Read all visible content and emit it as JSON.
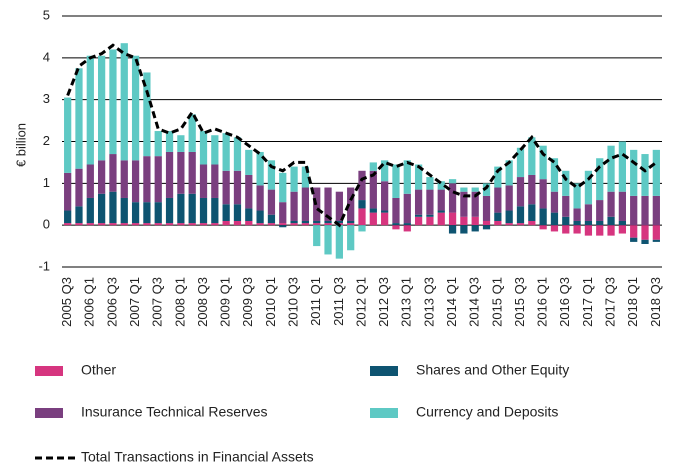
{
  "chart_data": {
    "type": "stacked-bar-line",
    "y_label": "€ billion",
    "categories": [
      "2005 Q3",
      null,
      "2006 Q1",
      null,
      "2006 Q3",
      null,
      "2007 Q1",
      null,
      "2007 Q3",
      null,
      "2008 Q1",
      null,
      "2008 Q3",
      null,
      "2009 Q1",
      null,
      "2009 Q3",
      null,
      "2010 Q1",
      null,
      "2010 Q3",
      null,
      "2011 Q1",
      null,
      "2011 Q3",
      null,
      "2012 Q1",
      null,
      "2012 Q3",
      null,
      "2013 Q1",
      null,
      "2013 Q3",
      null,
      "2014 Q1",
      null,
      "2014 Q3",
      null,
      "2015 Q1",
      null,
      "2015 Q3",
      null,
      "2016 Q1",
      null,
      "2016 Q3",
      null,
      "2017 Q1",
      null,
      "2017 Q3",
      null,
      "2018 Q1",
      null,
      "2018 Q3"
    ],
    "series": [
      {
        "name": "Other",
        "color": "#d6357f",
        "values": [
          0.05,
          0.05,
          0.05,
          0.05,
          0.05,
          0.05,
          0.05,
          0.05,
          0.05,
          0.05,
          0.05,
          0.05,
          0.05,
          0.05,
          0.1,
          0.1,
          0.1,
          0.05,
          0.05,
          0.05,
          0.05,
          0.05,
          0.05,
          0.05,
          0.05,
          0.05,
          0.4,
          0.3,
          0.3,
          -0.1,
          -0.15,
          0.2,
          0.2,
          0.3,
          0.3,
          0.2,
          0.2,
          0.1,
          0.1,
          0.05,
          0.05,
          0.1,
          -0.1,
          -0.15,
          -0.2,
          -0.2,
          -0.25,
          -0.25,
          -0.25,
          -0.2,
          -0.3,
          -0.35,
          -0.35
        ]
      },
      {
        "name": "Shares and Other Equity",
        "color": "#0e5471",
        "values": [
          0.3,
          0.4,
          0.6,
          0.7,
          0.75,
          0.6,
          0.5,
          0.5,
          0.5,
          0.6,
          0.7,
          0.7,
          0.6,
          0.6,
          0.4,
          0.4,
          0.3,
          0.3,
          0.2,
          -0.05,
          0.05,
          0.05,
          0.05,
          0.05,
          0.05,
          0.05,
          0.2,
          0.1,
          0.05,
          0.05,
          0.05,
          0.05,
          0.05,
          0.05,
          -0.2,
          -0.2,
          -0.15,
          -0.1,
          0.2,
          0.3,
          0.4,
          0.4,
          0.4,
          0.3,
          0.2,
          0.1,
          0.1,
          0.1,
          0.2,
          0.1,
          -0.1,
          -0.1,
          -0.05
        ]
      },
      {
        "name": "Insurance Technical Reserves",
        "color": "#7a3f7f",
        "values": [
          0.9,
          0.9,
          0.8,
          0.8,
          0.9,
          0.9,
          1.0,
          1.1,
          1.1,
          1.1,
          1.0,
          1.0,
          0.8,
          0.8,
          0.8,
          0.8,
          0.8,
          0.6,
          0.6,
          0.5,
          0.7,
          0.8,
          0.8,
          0.8,
          0.7,
          0.8,
          0.7,
          0.9,
          0.7,
          0.6,
          0.7,
          0.6,
          0.6,
          0.5,
          0.7,
          0.6,
          0.6,
          0.6,
          0.6,
          0.6,
          0.7,
          0.7,
          0.7,
          0.5,
          0.5,
          0.3,
          0.4,
          0.5,
          0.6,
          0.7,
          0.7,
          0.7,
          0.7
        ]
      },
      {
        "name": "Currency and Deposits",
        "color": "#5ec9c4",
        "values": [
          1.8,
          2.4,
          2.6,
          2.5,
          2.5,
          2.8,
          2.5,
          2.0,
          0.6,
          0.5,
          0.4,
          0.9,
          0.8,
          0.7,
          0.9,
          0.8,
          0.6,
          0.8,
          0.7,
          0.7,
          0.6,
          0.5,
          -0.5,
          -0.7,
          -0.8,
          -0.6,
          -0.15,
          0.2,
          0.5,
          0.8,
          0.8,
          0.6,
          0.3,
          0.2,
          0.1,
          0.1,
          0.1,
          0.3,
          0.5,
          0.6,
          0.7,
          0.9,
          0.8,
          0.8,
          0.6,
          0.6,
          0.8,
          1.0,
          1.1,
          1.2,
          1.1,
          1.0,
          1.1
        ]
      }
    ],
    "line": {
      "name": "Total Transactions in Financial Assets",
      "color": "#000000",
      "values": [
        3.1,
        3.8,
        4.0,
        4.1,
        4.3,
        4.1,
        4.0,
        3.2,
        2.3,
        2.2,
        2.3,
        2.7,
        2.2,
        2.3,
        2.2,
        2.1,
        1.9,
        1.7,
        1.4,
        1.3,
        1.5,
        1.5,
        0.4,
        0.2,
        0.0,
        0.6,
        1.1,
        1.2,
        1.5,
        1.4,
        1.5,
        1.4,
        1.2,
        1.0,
        0.8,
        0.7,
        0.7,
        0.9,
        1.3,
        1.5,
        1.8,
        2.1,
        1.7,
        1.5,
        1.1,
        0.9,
        1.1,
        1.4,
        1.6,
        1.7,
        1.5,
        1.3,
        1.5
      ]
    },
    "ylim": [
      -1,
      5
    ],
    "yticks": [
      -1,
      0,
      1,
      2,
      3,
      4,
      5
    ],
    "grid": true,
    "legend": "bottom"
  }
}
